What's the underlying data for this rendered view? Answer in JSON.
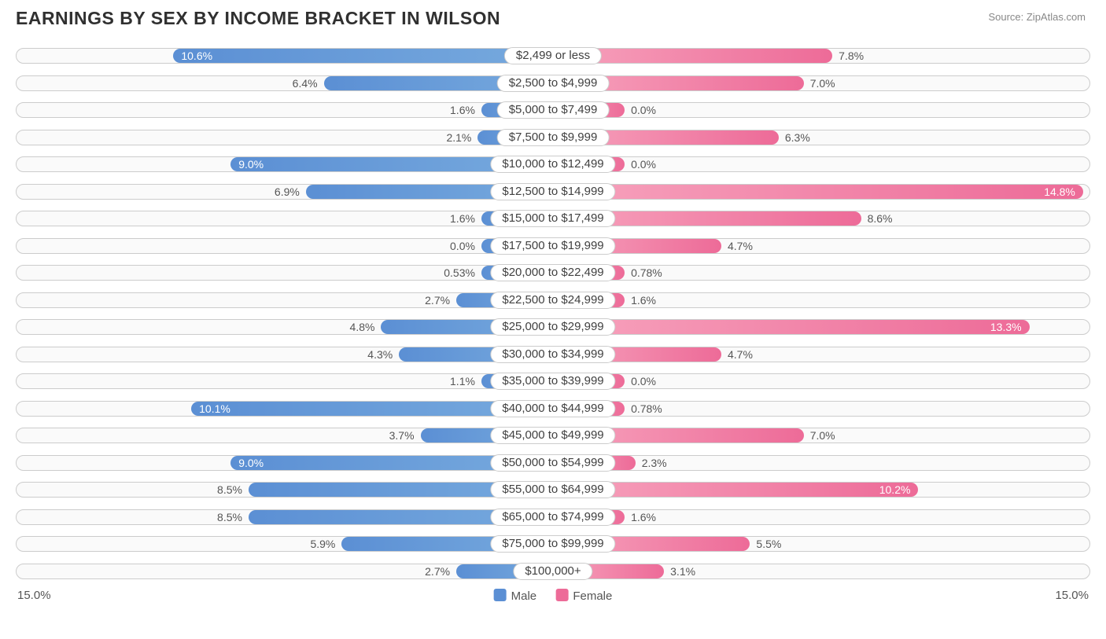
{
  "title": "EARNINGS BY SEX BY INCOME BRACKET IN WILSON",
  "source": "Source: ZipAtlas.com",
  "chart": {
    "type": "diverging-bar",
    "axis_max": 15.0,
    "axis_label_left": "15.0%",
    "axis_label_right": "15.0%",
    "track_border": "#cccccc",
    "track_bg": "#fafafa",
    "text_color": "#555555",
    "inside_text_color": "#ffffff",
    "male_gradient_start": "#77aade",
    "male_gradient_end": "#5b8fd4",
    "female_gradient_start": "#f7a3bd",
    "female_gradient_end": "#ed6b98",
    "min_bar_pct": 2.0,
    "inside_label_threshold": 8.8,
    "legend": {
      "male": "Male",
      "female": "Female"
    },
    "rows": [
      {
        "category": "$2,499 or less",
        "male": 10.6,
        "male_label": "10.6%",
        "female": 7.8,
        "female_label": "7.8%"
      },
      {
        "category": "$2,500 to $4,999",
        "male": 6.4,
        "male_label": "6.4%",
        "female": 7.0,
        "female_label": "7.0%"
      },
      {
        "category": "$5,000 to $7,499",
        "male": 1.6,
        "male_label": "1.6%",
        "female": 0.0,
        "female_label": "0.0%"
      },
      {
        "category": "$7,500 to $9,999",
        "male": 2.1,
        "male_label": "2.1%",
        "female": 6.3,
        "female_label": "6.3%"
      },
      {
        "category": "$10,000 to $12,499",
        "male": 9.0,
        "male_label": "9.0%",
        "female": 0.0,
        "female_label": "0.0%"
      },
      {
        "category": "$12,500 to $14,999",
        "male": 6.9,
        "male_label": "6.9%",
        "female": 14.8,
        "female_label": "14.8%"
      },
      {
        "category": "$15,000 to $17,499",
        "male": 1.6,
        "male_label": "1.6%",
        "female": 8.6,
        "female_label": "8.6%"
      },
      {
        "category": "$17,500 to $19,999",
        "male": 0.0,
        "male_label": "0.0%",
        "female": 4.7,
        "female_label": "4.7%"
      },
      {
        "category": "$20,000 to $22,499",
        "male": 0.53,
        "male_label": "0.53%",
        "female": 0.78,
        "female_label": "0.78%"
      },
      {
        "category": "$22,500 to $24,999",
        "male": 2.7,
        "male_label": "2.7%",
        "female": 1.6,
        "female_label": "1.6%"
      },
      {
        "category": "$25,000 to $29,999",
        "male": 4.8,
        "male_label": "4.8%",
        "female": 13.3,
        "female_label": "13.3%"
      },
      {
        "category": "$30,000 to $34,999",
        "male": 4.3,
        "male_label": "4.3%",
        "female": 4.7,
        "female_label": "4.7%"
      },
      {
        "category": "$35,000 to $39,999",
        "male": 1.1,
        "male_label": "1.1%",
        "female": 0.0,
        "female_label": "0.0%"
      },
      {
        "category": "$40,000 to $44,999",
        "male": 10.1,
        "male_label": "10.1%",
        "female": 0.78,
        "female_label": "0.78%"
      },
      {
        "category": "$45,000 to $49,999",
        "male": 3.7,
        "male_label": "3.7%",
        "female": 7.0,
        "female_label": "7.0%"
      },
      {
        "category": "$50,000 to $54,999",
        "male": 9.0,
        "male_label": "9.0%",
        "female": 2.3,
        "female_label": "2.3%"
      },
      {
        "category": "$55,000 to $64,999",
        "male": 8.5,
        "male_label": "8.5%",
        "female": 10.2,
        "female_label": "10.2%"
      },
      {
        "category": "$65,000 to $74,999",
        "male": 8.5,
        "male_label": "8.5%",
        "female": 1.6,
        "female_label": "1.6%"
      },
      {
        "category": "$75,000 to $99,999",
        "male": 5.9,
        "male_label": "5.9%",
        "female": 5.5,
        "female_label": "5.5%"
      },
      {
        "category": "$100,000+",
        "male": 2.7,
        "male_label": "2.7%",
        "female": 3.1,
        "female_label": "3.1%"
      }
    ]
  }
}
